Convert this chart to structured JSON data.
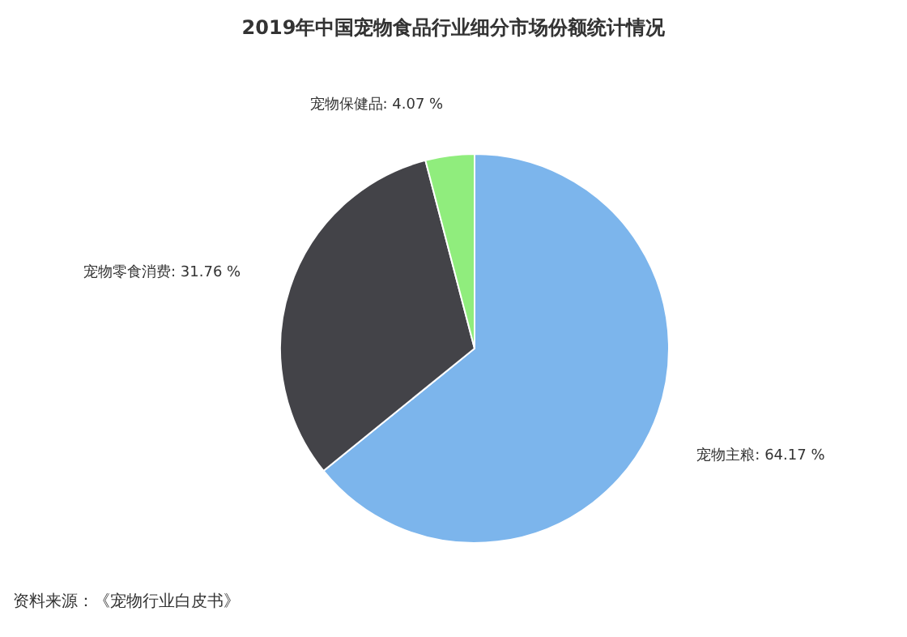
{
  "chart_data": {
    "type": "pie",
    "title": "2019年中国宠物食品行业细分市场份额统计情况",
    "categories": [
      "宠物主粮",
      "宠物零食消费",
      "宠物保健品"
    ],
    "values": [
      64.17,
      31.76,
      4.07
    ],
    "colors": [
      "#7cb5ec",
      "#434348",
      "#90ed7d"
    ],
    "value_labels": [
      ": 64.17 %",
      ": 31.76 %",
      ": 4.07 %"
    ],
    "annotations": [
      "资料来源：《宠物行业白皮书》"
    ]
  }
}
